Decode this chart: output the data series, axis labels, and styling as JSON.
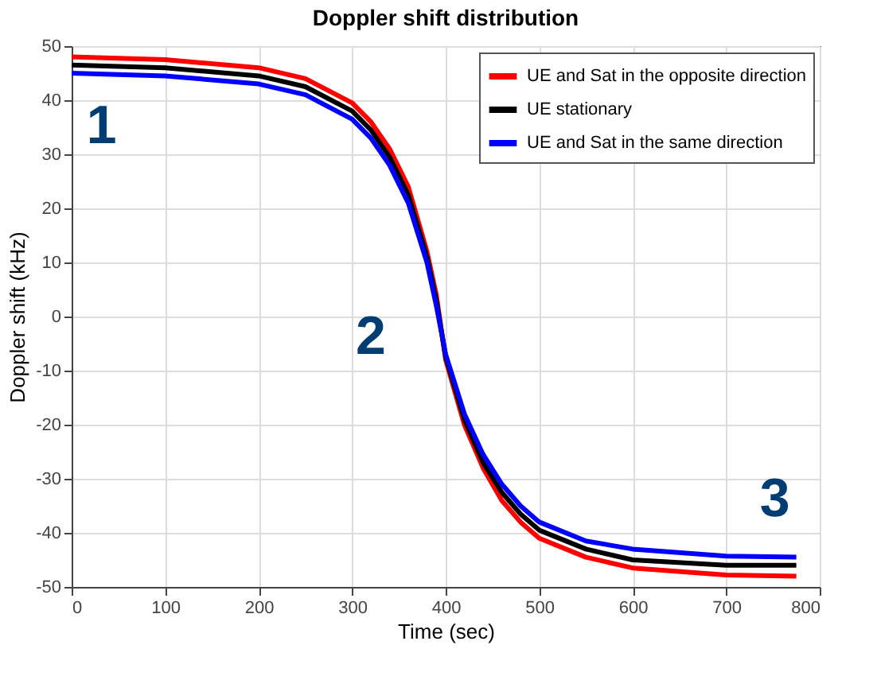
{
  "chart_data": {
    "type": "line",
    "title": "Doppler shift distribution",
    "xlabel": "Time (sec)",
    "ylabel": "Doppler shift (kHz)",
    "x": [
      0,
      100,
      200,
      250,
      300,
      320,
      340,
      360,
      380,
      390,
      400,
      420,
      440,
      460,
      480,
      500,
      550,
      600,
      700,
      775
    ],
    "series": [
      {
        "name": "UE and Sat in the opposite direction",
        "color": "#ff0000",
        "values": [
          48,
          47.5,
          46,
          44,
          39.5,
          36,
          31,
          24,
          12,
          4,
          -8,
          -20,
          -28,
          -34,
          -38,
          -41,
          -44.5,
          -46.5,
          -47.8,
          -48
        ]
      },
      {
        "name": "UE stationary",
        "color": "#000000",
        "values": [
          46.5,
          46,
          44.5,
          42.5,
          38,
          34.5,
          29.5,
          22.5,
          11,
          3,
          -7.5,
          -19,
          -27,
          -32.5,
          -36.5,
          -39.5,
          -43,
          -45,
          -46,
          -46
        ]
      },
      {
        "name": "UE and Sat in the same direction",
        "color": "#0000ff",
        "values": [
          45,
          44.5,
          43,
          41,
          36.5,
          33,
          28,
          21,
          10,
          2,
          -7,
          -18,
          -25.5,
          -31,
          -35,
          -38,
          -41.5,
          -43,
          -44.3,
          -44.5
        ]
      }
    ],
    "xlim": [
      0,
      800
    ],
    "xticks": [
      0,
      100,
      200,
      300,
      400,
      500,
      600,
      700,
      800
    ],
    "ylim": [
      -50,
      50
    ],
    "yticks": [
      -50,
      -40,
      -30,
      -20,
      -10,
      0,
      10,
      20,
      30,
      40,
      50
    ],
    "grid": true,
    "legend": "top right",
    "line_style": "solid",
    "marker": "none",
    "annotations": [
      "1",
      "2",
      "3"
    ]
  }
}
